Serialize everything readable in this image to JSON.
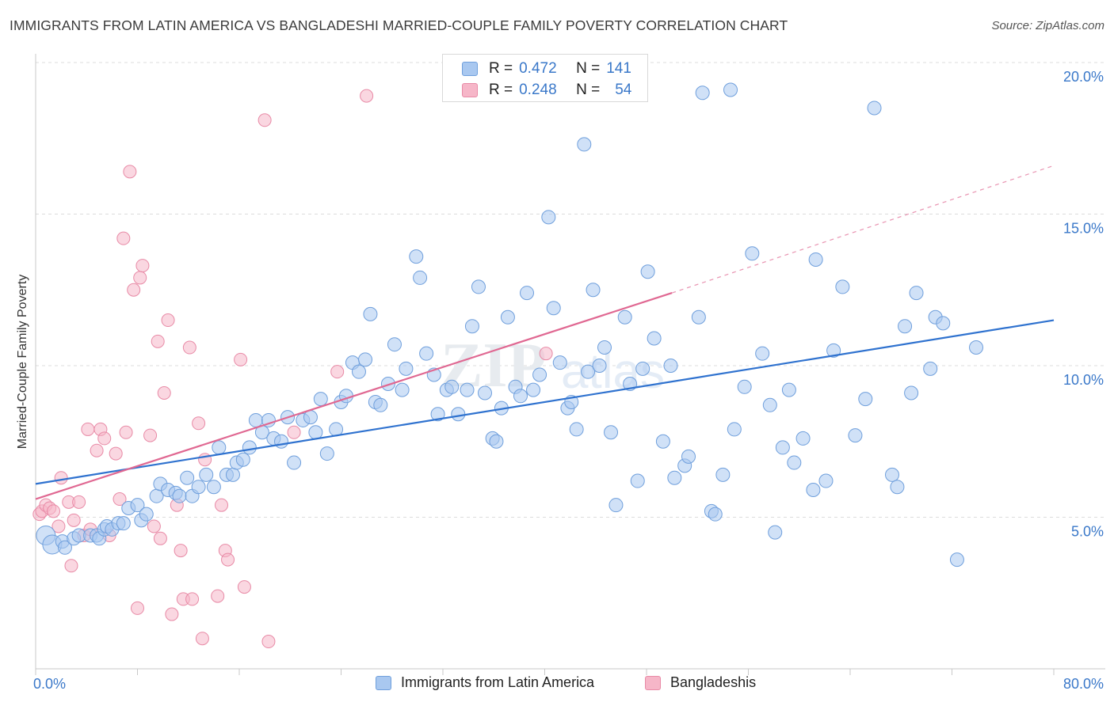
{
  "header": {
    "title": "IMMIGRANTS FROM LATIN AMERICA VS BANGLADESHI MARRIED-COUPLE FAMILY POVERTY CORRELATION CHART",
    "source": "Source: ZipAtlas.com"
  },
  "watermark": {
    "zip": "ZIP",
    "atlas": "atlas"
  },
  "colors": {
    "blue_fill": "#a9c8f0",
    "blue_stroke": "#6f9fdc",
    "blue_line": "#2f72cf",
    "pink_fill": "#f6b6c8",
    "pink_stroke": "#e88aa6",
    "pink_line": "#e06892",
    "tick_label": "#3a78c9",
    "grid": "#dcdcdc"
  },
  "stats_legend": {
    "rows": [
      {
        "r_label": "R =",
        "r_value": "0.472",
        "n_label": "N =",
        "n_value": "141",
        "color": "#a9c8f0"
      },
      {
        "r_label": "R =",
        "r_value": "0.248",
        "n_label": "N =",
        "n_value": "54",
        "color": "#f6b6c8"
      }
    ]
  },
  "chart_data": {
    "type": "scatter",
    "title": "IMMIGRANTS FROM LATIN AMERICA VS BANGLADESHI MARRIED-COUPLE FAMILY POVERTY CORRELATION CHART",
    "xlabel": "",
    "ylabel": "Married-Couple Family Poverty",
    "xlim": [
      0,
      80
    ],
    "ylim": [
      0,
      20.5
    ],
    "x_tick_labels": [
      "0.0%",
      "80.0%"
    ],
    "y_ticks": [
      5,
      10,
      15,
      20
    ],
    "y_tick_labels": [
      "5.0%",
      "10.0%",
      "15.0%",
      "20.0%"
    ],
    "grid": "horizontal dashed",
    "legend_position": "bottom",
    "series": [
      {
        "name": "Immigrants from Latin America",
        "color": "#a9c8f0",
        "trend": {
          "x": [
            0,
            80
          ],
          "y": [
            6.1,
            11.5
          ],
          "dashed_extension": false
        },
        "points": [
          [
            0.8,
            4.4
          ],
          [
            1.3,
            4.1
          ],
          [
            2.1,
            4.2
          ],
          [
            2.3,
            4.0
          ],
          [
            3.0,
            4.3
          ],
          [
            3.4,
            4.4
          ],
          [
            4.3,
            4.4
          ],
          [
            4.8,
            4.4
          ],
          [
            5.0,
            4.3
          ],
          [
            5.4,
            4.6
          ],
          [
            5.6,
            4.7
          ],
          [
            6.0,
            4.6
          ],
          [
            6.5,
            4.8
          ],
          [
            6.9,
            4.8
          ],
          [
            7.3,
            5.3
          ],
          [
            8.0,
            5.4
          ],
          [
            8.3,
            4.9
          ],
          [
            8.7,
            5.1
          ],
          [
            9.5,
            5.7
          ],
          [
            9.8,
            6.1
          ],
          [
            10.4,
            5.9
          ],
          [
            11.0,
            5.8
          ],
          [
            11.3,
            5.7
          ],
          [
            11.9,
            6.3
          ],
          [
            12.3,
            5.7
          ],
          [
            12.8,
            6.0
          ],
          [
            13.4,
            6.4
          ],
          [
            14.0,
            6.0
          ],
          [
            14.4,
            7.3
          ],
          [
            15.0,
            6.4
          ],
          [
            15.5,
            6.4
          ],
          [
            15.8,
            6.8
          ],
          [
            16.3,
            6.9
          ],
          [
            16.8,
            7.3
          ],
          [
            17.3,
            8.2
          ],
          [
            17.8,
            7.8
          ],
          [
            18.3,
            8.2
          ],
          [
            18.7,
            7.6
          ],
          [
            19.3,
            7.5
          ],
          [
            19.8,
            8.3
          ],
          [
            20.3,
            6.8
          ],
          [
            21.0,
            8.2
          ],
          [
            21.6,
            8.3
          ],
          [
            22.0,
            7.8
          ],
          [
            22.4,
            8.9
          ],
          [
            22.9,
            7.1
          ],
          [
            23.6,
            7.9
          ],
          [
            24.0,
            8.8
          ],
          [
            24.4,
            9.0
          ],
          [
            24.9,
            10.1
          ],
          [
            25.4,
            9.8
          ],
          [
            25.9,
            10.2
          ],
          [
            26.3,
            11.7
          ],
          [
            26.7,
            8.8
          ],
          [
            27.1,
            8.7
          ],
          [
            27.7,
            9.4
          ],
          [
            28.2,
            10.7
          ],
          [
            28.8,
            9.2
          ],
          [
            29.1,
            9.9
          ],
          [
            29.9,
            13.6
          ],
          [
            30.2,
            12.9
          ],
          [
            30.7,
            10.4
          ],
          [
            31.3,
            9.7
          ],
          [
            31.6,
            8.4
          ],
          [
            32.3,
            9.2
          ],
          [
            32.7,
            9.3
          ],
          [
            33.2,
            8.4
          ],
          [
            33.9,
            9.2
          ],
          [
            34.3,
            11.3
          ],
          [
            34.8,
            12.6
          ],
          [
            35.3,
            9.1
          ],
          [
            35.9,
            7.6
          ],
          [
            36.2,
            7.5
          ],
          [
            36.6,
            8.6
          ],
          [
            37.1,
            11.6
          ],
          [
            37.7,
            9.3
          ],
          [
            38.1,
            9.0
          ],
          [
            38.6,
            12.4
          ],
          [
            39.1,
            9.2
          ],
          [
            39.6,
            9.7
          ],
          [
            40.3,
            14.9
          ],
          [
            40.7,
            11.9
          ],
          [
            41.2,
            10.1
          ],
          [
            41.8,
            8.6
          ],
          [
            42.1,
            8.8
          ],
          [
            42.5,
            7.9
          ],
          [
            43.1,
            17.3
          ],
          [
            43.4,
            9.8
          ],
          [
            43.8,
            12.5
          ],
          [
            44.3,
            10.0
          ],
          [
            44.7,
            10.6
          ],
          [
            45.2,
            7.8
          ],
          [
            45.6,
            5.4
          ],
          [
            46.3,
            11.6
          ],
          [
            46.7,
            9.4
          ],
          [
            47.3,
            6.2
          ],
          [
            47.7,
            9.9
          ],
          [
            48.1,
            13.1
          ],
          [
            48.6,
            10.9
          ],
          [
            49.3,
            7.5
          ],
          [
            49.9,
            10.0
          ],
          [
            50.2,
            6.3
          ],
          [
            51.0,
            6.7
          ],
          [
            51.3,
            7.0
          ],
          [
            52.1,
            11.6
          ],
          [
            52.4,
            19.0
          ],
          [
            53.1,
            5.2
          ],
          [
            53.4,
            5.1
          ],
          [
            54.0,
            6.4
          ],
          [
            54.6,
            19.1
          ],
          [
            54.9,
            7.9
          ],
          [
            55.7,
            9.3
          ],
          [
            56.3,
            13.7
          ],
          [
            57.1,
            10.4
          ],
          [
            57.7,
            8.7
          ],
          [
            58.1,
            4.5
          ],
          [
            58.7,
            7.3
          ],
          [
            59.2,
            9.2
          ],
          [
            59.6,
            6.8
          ],
          [
            60.3,
            7.6
          ],
          [
            61.1,
            5.9
          ],
          [
            61.3,
            13.5
          ],
          [
            62.1,
            6.2
          ],
          [
            62.7,
            10.5
          ],
          [
            63.4,
            12.6
          ],
          [
            64.4,
            7.7
          ],
          [
            65.2,
            8.9
          ],
          [
            65.9,
            18.5
          ],
          [
            67.3,
            6.4
          ],
          [
            67.7,
            6.0
          ],
          [
            68.3,
            11.3
          ],
          [
            68.8,
            9.1
          ],
          [
            69.2,
            12.4
          ],
          [
            70.3,
            9.9
          ],
          [
            70.7,
            11.6
          ],
          [
            71.3,
            11.4
          ],
          [
            72.4,
            3.6
          ],
          [
            73.9,
            10.6
          ]
        ]
      },
      {
        "name": "Bangladeshis",
        "color": "#f6b6c8",
        "trend": {
          "x": [
            0,
            50
          ],
          "y": [
            5.6,
            12.4
          ],
          "dashed_extension": true,
          "dashed_x": [
            50,
            80
          ],
          "dashed_y": [
            12.4,
            16.6
          ]
        },
        "points": [
          [
            0.3,
            5.1
          ],
          [
            0.5,
            5.2
          ],
          [
            0.8,
            5.4
          ],
          [
            1.1,
            5.3
          ],
          [
            1.4,
            5.2
          ],
          [
            1.8,
            4.7
          ],
          [
            2.0,
            6.3
          ],
          [
            2.6,
            5.5
          ],
          [
            2.8,
            3.4
          ],
          [
            3.0,
            4.9
          ],
          [
            3.4,
            5.5
          ],
          [
            3.8,
            4.4
          ],
          [
            4.1,
            7.9
          ],
          [
            4.3,
            4.6
          ],
          [
            4.8,
            7.2
          ],
          [
            5.1,
            7.9
          ],
          [
            5.4,
            7.6
          ],
          [
            5.8,
            4.4
          ],
          [
            6.3,
            7.1
          ],
          [
            6.6,
            5.6
          ],
          [
            6.9,
            14.2
          ],
          [
            7.1,
            7.8
          ],
          [
            7.4,
            16.4
          ],
          [
            7.7,
            12.5
          ],
          [
            8.0,
            2.0
          ],
          [
            8.2,
            12.9
          ],
          [
            8.4,
            13.3
          ],
          [
            9.0,
            7.7
          ],
          [
            9.3,
            4.7
          ],
          [
            9.6,
            10.8
          ],
          [
            9.8,
            4.3
          ],
          [
            10.1,
            9.1
          ],
          [
            10.4,
            11.5
          ],
          [
            10.7,
            1.8
          ],
          [
            11.1,
            5.4
          ],
          [
            11.4,
            3.9
          ],
          [
            11.6,
            2.3
          ],
          [
            12.1,
            10.6
          ],
          [
            12.3,
            2.3
          ],
          [
            12.8,
            8.1
          ],
          [
            13.1,
            1.0
          ],
          [
            13.3,
            6.9
          ],
          [
            14.3,
            2.4
          ],
          [
            14.6,
            5.4
          ],
          [
            14.9,
            3.9
          ],
          [
            15.1,
            3.6
          ],
          [
            16.1,
            10.2
          ],
          [
            16.4,
            2.7
          ],
          [
            18.0,
            18.1
          ],
          [
            18.3,
            0.9
          ],
          [
            20.3,
            7.8
          ],
          [
            23.7,
            9.8
          ],
          [
            26.0,
            18.9
          ],
          [
            40.1,
            10.4
          ]
        ]
      }
    ]
  },
  "bottom_legend": {
    "items": [
      {
        "label": "Immigrants from Latin America",
        "color": "#a9c8f0"
      },
      {
        "label": "Bangladeshis",
        "color": "#f6b6c8"
      }
    ]
  }
}
